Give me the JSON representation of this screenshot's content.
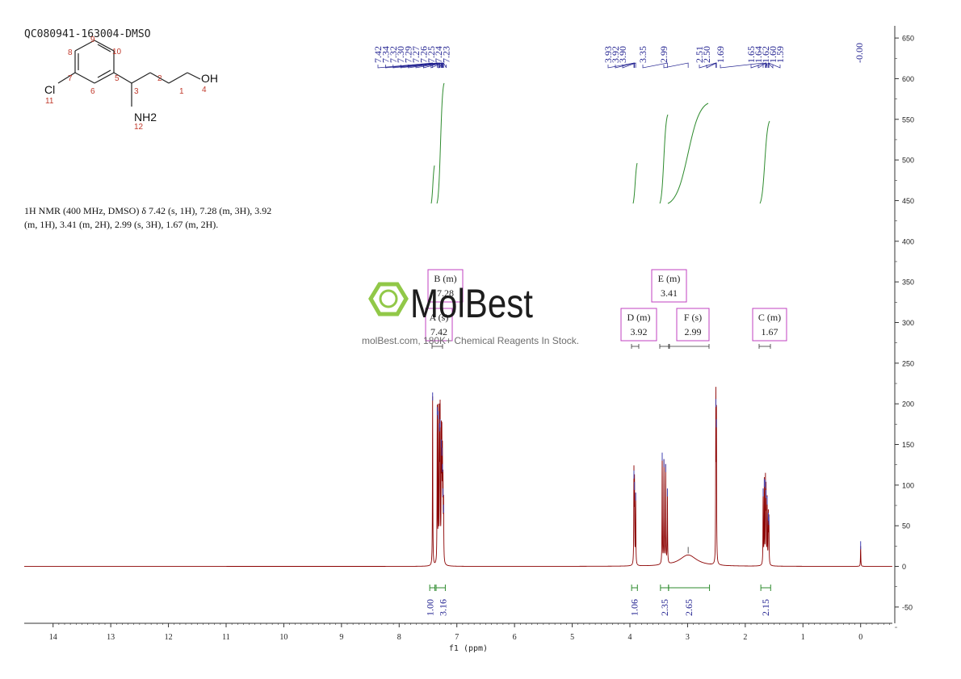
{
  "sample_id": "QC080941-163004-DMSO",
  "molecule": {
    "atoms": [
      {
        "id": "c1",
        "label": "1"
      },
      {
        "id": "c2",
        "label": "2"
      },
      {
        "id": "c3",
        "label": "3"
      },
      {
        "id": "o4",
        "label": "4"
      },
      {
        "id": "c5",
        "label": "5"
      },
      {
        "id": "c6",
        "label": "6"
      },
      {
        "id": "c7",
        "label": "7"
      },
      {
        "id": "c8",
        "label": "8"
      },
      {
        "id": "c9",
        "label": "9"
      },
      {
        "id": "c10",
        "label": "10"
      },
      {
        "id": "cl11",
        "label": "11"
      },
      {
        "id": "n12",
        "label": "12"
      }
    ],
    "groups": {
      "oh": "OH",
      "cl": "Cl",
      "nh2": "NH2"
    }
  },
  "nmr_text_line1": "1H NMR (400 MHz, DMSO) δ 7.42 (s, 1H), 7.28 (m, 3H), 3.92",
  "nmr_text_line2": "(m, 1H), 3.41 (m, 2H), 2.99 (s, 3H), 1.67 (m, 2H).",
  "watermark": {
    "brand": "MolBest",
    "tagline": "molBest.com, 180K+ Chemical Reagents In Stock."
  },
  "colors": {
    "spectrum": "#8b0000",
    "integral": "#2e8b2e",
    "peak_label": "#1f1f8f",
    "multiplet": "#c040c0",
    "axis": "#333333",
    "logo_green": "#8cc63f"
  },
  "chart_data": {
    "type": "line",
    "xlabel": "f1 (ppm)",
    "x_ticks": [
      14,
      13,
      12,
      11,
      10,
      9,
      8,
      7,
      6,
      5,
      4,
      3,
      2,
      1,
      0
    ],
    "xlim": [
      14.5,
      -0.55
    ],
    "y_ticks": [
      650,
      600,
      550,
      500,
      450,
      400,
      350,
      300,
      250,
      200,
      150,
      100,
      50,
      0,
      -50
    ],
    "ylim": [
      -70,
      665
    ],
    "peak_labels_left": [
      "7.42",
      "7.34",
      "7.32",
      "7.30",
      "7.29",
      "7.27",
      "7.26",
      "7.25",
      "7.24",
      "7.23"
    ],
    "peak_labels_mid": [
      "3.93",
      "3.92",
      "3.90",
      "3.35",
      "2.99",
      "2.51",
      "2.50",
      "1.69",
      "1.65",
      "1.64",
      "1.62",
      "1.60",
      "1.59"
    ],
    "peak_labels_right": [
      "-0.00"
    ],
    "peaks": [
      {
        "ppm": 7.42,
        "height": 208
      },
      {
        "ppm": 7.34,
        "height": 190
      },
      {
        "ppm": 7.32,
        "height": 185
      },
      {
        "ppm": 7.3,
        "height": 170
      },
      {
        "ppm": 7.29,
        "height": 175
      },
      {
        "ppm": 7.27,
        "height": 150
      },
      {
        "ppm": 7.26,
        "height": 140
      },
      {
        "ppm": 7.25,
        "height": 120
      },
      {
        "ppm": 7.24,
        "height": 90
      },
      {
        "ppm": 7.23,
        "height": 70
      },
      {
        "ppm": 3.93,
        "height": 112
      },
      {
        "ppm": 3.92,
        "height": 98
      },
      {
        "ppm": 3.9,
        "height": 85
      },
      {
        "ppm": 3.44,
        "height": 134
      },
      {
        "ppm": 3.41,
        "height": 126
      },
      {
        "ppm": 3.38,
        "height": 120
      },
      {
        "ppm": 3.35,
        "height": 90
      },
      {
        "ppm": 2.51,
        "height": 200
      },
      {
        "ppm": 2.5,
        "height": 175
      },
      {
        "ppm": 1.69,
        "height": 90
      },
      {
        "ppm": 1.67,
        "height": 102
      },
      {
        "ppm": 1.65,
        "height": 100
      },
      {
        "ppm": 1.64,
        "height": 88
      },
      {
        "ppm": 1.62,
        "height": 80
      },
      {
        "ppm": 1.6,
        "height": 60
      },
      {
        "ppm": 1.59,
        "height": 55
      },
      {
        "ppm": 0.0,
        "height": 25
      }
    ],
    "broad_peak": {
      "ppm": 2.99,
      "height": 14
    },
    "multiplets": [
      {
        "label": "A (s)",
        "value": "7.42",
        "ppm": 7.42
      },
      {
        "label": "B (m)",
        "value": "7.28",
        "ppm": 7.28
      },
      {
        "label": "D (m)",
        "value": "3.92",
        "ppm": 3.92
      },
      {
        "label": "E (m)",
        "value": "3.41",
        "ppm": 3.41
      },
      {
        "label": "F (s)",
        "value": "2.99",
        "ppm": 2.99
      },
      {
        "label": "C (m)",
        "value": "1.67",
        "ppm": 1.67
      }
    ],
    "integrals": [
      {
        "value": "1.00",
        "from": 7.47,
        "to": 7.38
      },
      {
        "value": "3.16",
        "from": 7.36,
        "to": 7.2
      },
      {
        "value": "1.06",
        "from": 3.97,
        "to": 3.87
      },
      {
        "value": "2.35",
        "from": 3.47,
        "to": 3.33
      },
      {
        "value": "2.65",
        "from": 3.33,
        "to": 2.62
      },
      {
        "value": "2.15",
        "from": 1.73,
        "to": 1.56
      }
    ]
  }
}
